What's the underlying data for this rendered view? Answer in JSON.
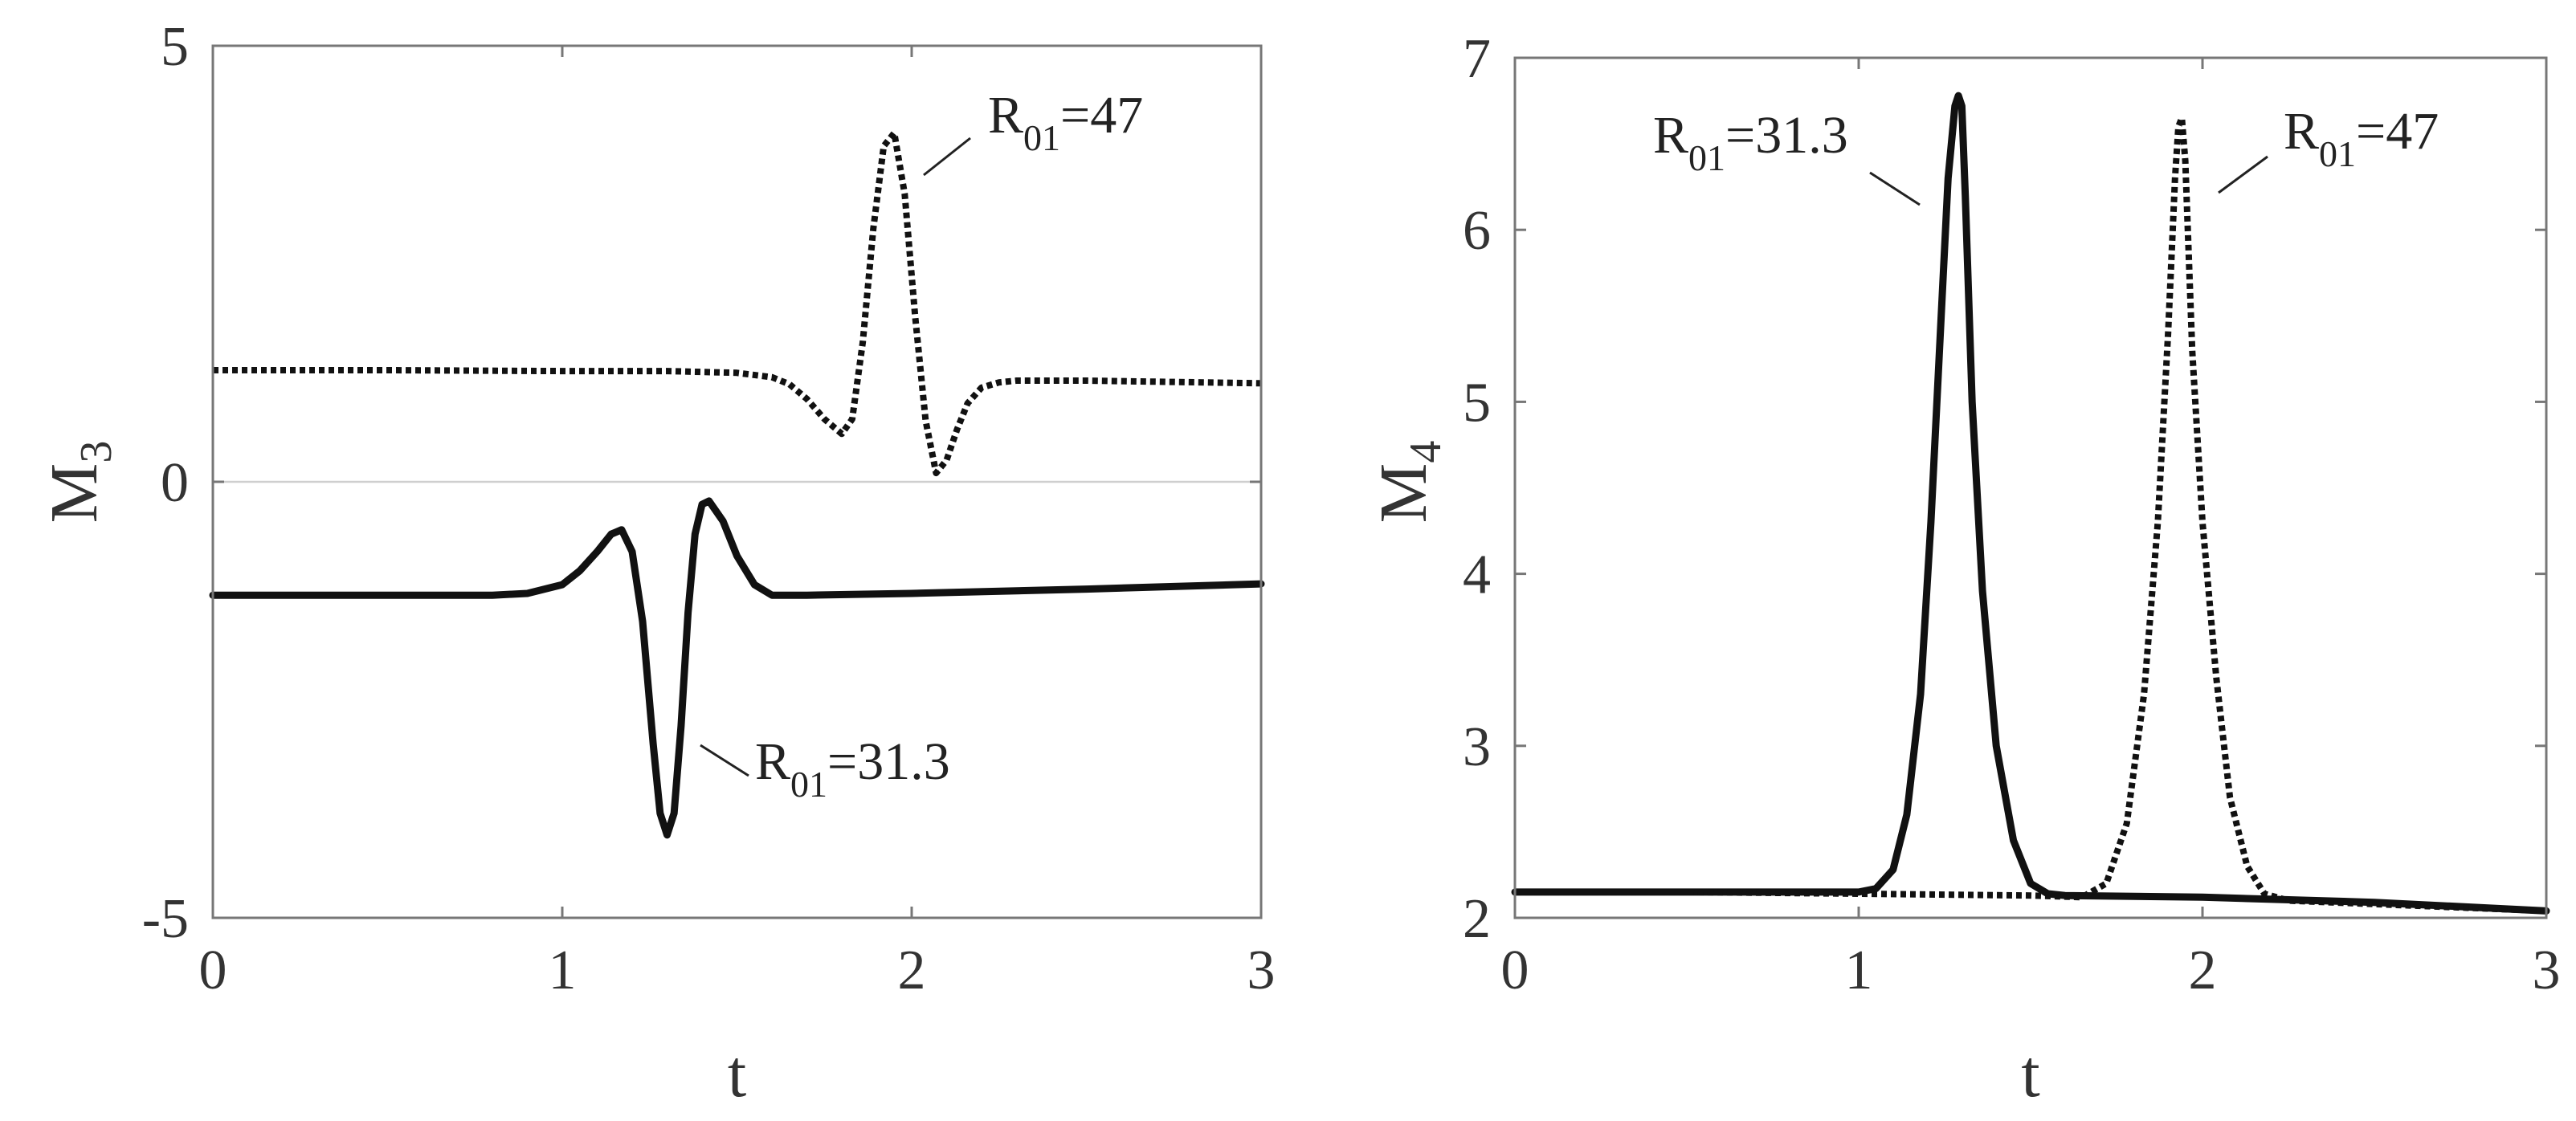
{
  "chart_data": [
    {
      "type": "line",
      "xlabel": "t",
      "ylabel": {
        "base": "M",
        "sub": "3"
      },
      "xlim": [
        0,
        3
      ],
      "ylim": [
        -5,
        5
      ],
      "xticks": [
        "0",
        "1",
        "2",
        "3"
      ],
      "yticks": [
        "-5",
        "0",
        "5"
      ],
      "grid": false,
      "reference_line_y": 0,
      "series": [
        {
          "style": "solid",
          "x": [
            0,
            0.2,
            0.4,
            0.6,
            0.8,
            0.9,
            1.0,
            1.05,
            1.1,
            1.14,
            1.17,
            1.2,
            1.23,
            1.26,
            1.28,
            1.3,
            1.32,
            1.34,
            1.36,
            1.38,
            1.4,
            1.42,
            1.46,
            1.5,
            1.55,
            1.6,
            1.7,
            2.0,
            2.5,
            3.0
          ],
          "y": [
            -1.3,
            -1.3,
            -1.3,
            -1.3,
            -1.3,
            -1.28,
            -1.18,
            -1.02,
            -0.8,
            -0.6,
            -0.55,
            -0.8,
            -1.6,
            -3.0,
            -3.8,
            -4.05,
            -3.8,
            -2.8,
            -1.5,
            -0.6,
            -0.26,
            -0.22,
            -0.45,
            -0.85,
            -1.18,
            -1.3,
            -1.3,
            -1.28,
            -1.23,
            -1.17
          ]
        },
        {
          "style": "dotted",
          "x": [
            0,
            0.5,
            1.0,
            1.3,
            1.5,
            1.6,
            1.65,
            1.7,
            1.75,
            1.8,
            1.83,
            1.86,
            1.89,
            1.92,
            1.95,
            1.98,
            2.01,
            2.04,
            2.07,
            2.1,
            2.13,
            2.16,
            2.2,
            2.25,
            2.3,
            2.5,
            3.0
          ],
          "y": [
            1.28,
            1.28,
            1.27,
            1.27,
            1.25,
            1.2,
            1.12,
            0.95,
            0.72,
            0.55,
            0.72,
            1.6,
            2.9,
            3.85,
            4.0,
            3.3,
            1.9,
            0.7,
            0.1,
            0.25,
            0.6,
            0.9,
            1.08,
            1.14,
            1.16,
            1.16,
            1.13
          ]
        }
      ],
      "annotations": [
        {
          "base": "R",
          "sub": "01",
          "rest": "=47",
          "series": "dotted",
          "at": [
            1.97,
            3.55
          ]
        },
        {
          "base": "R",
          "sub": "01",
          "rest": "=31.3",
          "series": "solid",
          "at": [
            1.38,
            -3.0
          ]
        }
      ]
    },
    {
      "type": "line",
      "xlabel": "t",
      "ylabel": {
        "base": "M",
        "sub": "4"
      },
      "xlim": [
        0,
        3
      ],
      "ylim": [
        2,
        7
      ],
      "xticks": [
        "0",
        "1",
        "2",
        "3"
      ],
      "yticks": [
        "2",
        "3",
        "4",
        "5",
        "6",
        "7"
      ],
      "grid": false,
      "series": [
        {
          "style": "solid",
          "x": [
            0,
            0.3,
            0.6,
            0.9,
            1.0,
            1.05,
            1.1,
            1.14,
            1.18,
            1.21,
            1.24,
            1.26,
            1.28,
            1.29,
            1.3,
            1.31,
            1.33,
            1.36,
            1.4,
            1.45,
            1.5,
            1.55,
            1.6,
            2.0,
            2.5,
            3.0
          ],
          "y": [
            2.15,
            2.15,
            2.15,
            2.15,
            2.15,
            2.17,
            2.28,
            2.6,
            3.3,
            4.3,
            5.5,
            6.3,
            6.72,
            6.78,
            6.72,
            6.2,
            5.0,
            3.9,
            3.0,
            2.45,
            2.2,
            2.14,
            2.13,
            2.12,
            2.09,
            2.04
          ]
        },
        {
          "style": "dotted",
          "x": [
            0,
            0.5,
            1.0,
            1.5,
            1.65,
            1.72,
            1.78,
            1.83,
            1.87,
            1.9,
            1.92,
            1.93,
            1.94,
            1.95,
            1.97,
            2.0,
            2.04,
            2.08,
            2.13,
            2.18,
            2.25,
            2.5,
            3.0
          ],
          "y": [
            2.15,
            2.15,
            2.14,
            2.13,
            2.12,
            2.2,
            2.55,
            3.3,
            4.3,
            5.4,
            6.3,
            6.6,
            6.65,
            6.4,
            5.3,
            4.3,
            3.4,
            2.7,
            2.3,
            2.14,
            2.1,
            2.08,
            2.04
          ]
        }
      ],
      "annotations": [
        {
          "base": "R",
          "sub": "01",
          "rest": "=31.3",
          "series": "solid",
          "at": [
            1.25,
            6.15
          ]
        },
        {
          "base": "R",
          "sub": "01",
          "rest": "=47",
          "series": "dotted",
          "at": [
            1.97,
            6.2
          ]
        }
      ]
    }
  ]
}
